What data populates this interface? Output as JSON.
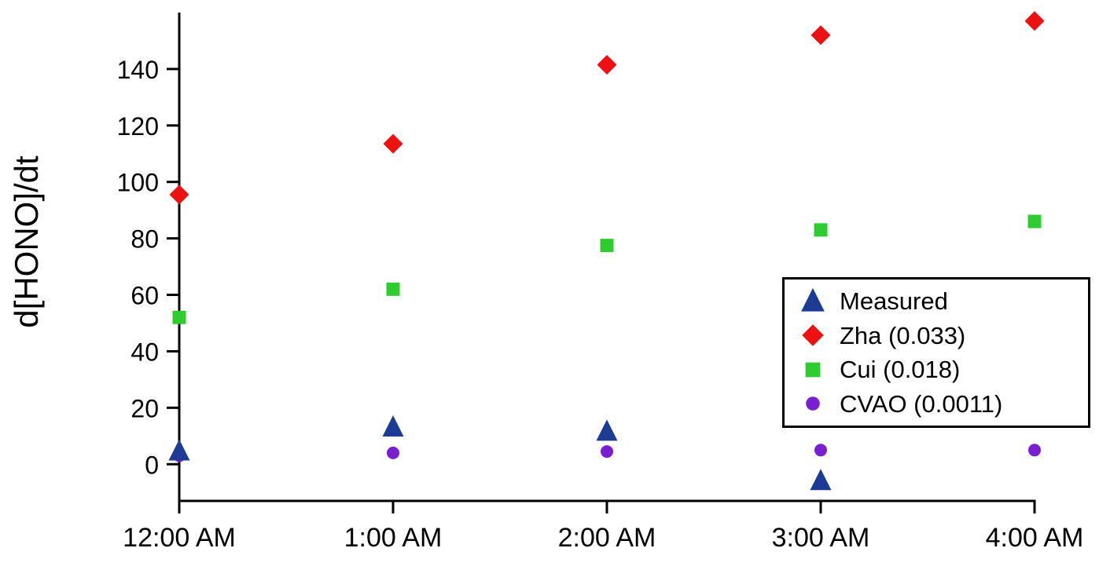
{
  "chart_data": {
    "type": "scatter",
    "title": "",
    "xlabel": "",
    "ylabel": "d[HONO]/dt",
    "categories": [
      "12:00 AM",
      "1:00 AM",
      "2:00 AM",
      "3:00 AM",
      "4:00 AM"
    ],
    "yticks": [
      0,
      20,
      40,
      60,
      80,
      100,
      120,
      140
    ],
    "ylim": [
      -13,
      160
    ],
    "grid": false,
    "legend_position": "right-middle",
    "series": [
      {
        "name": "Measured",
        "marker": "triangle",
        "color": "#1b3b94",
        "values": [
          4.5,
          13,
          11.5,
          -6,
          null
        ]
      },
      {
        "name": "Zha (0.033)",
        "marker": "diamond",
        "color": "#ee1111",
        "values": [
          95.5,
          113.5,
          141.5,
          152,
          157
        ]
      },
      {
        "name": "Cui (0.018)",
        "marker": "square",
        "color": "#2ecc2e",
        "values": [
          52,
          62,
          77.5,
          83,
          86
        ]
      },
      {
        "name": "CVAO (0.0011)",
        "marker": "circle",
        "color": "#7a1fd0",
        "values": [
          3,
          4,
          4.5,
          5,
          5
        ]
      }
    ],
    "axis_color": "#000000"
  }
}
